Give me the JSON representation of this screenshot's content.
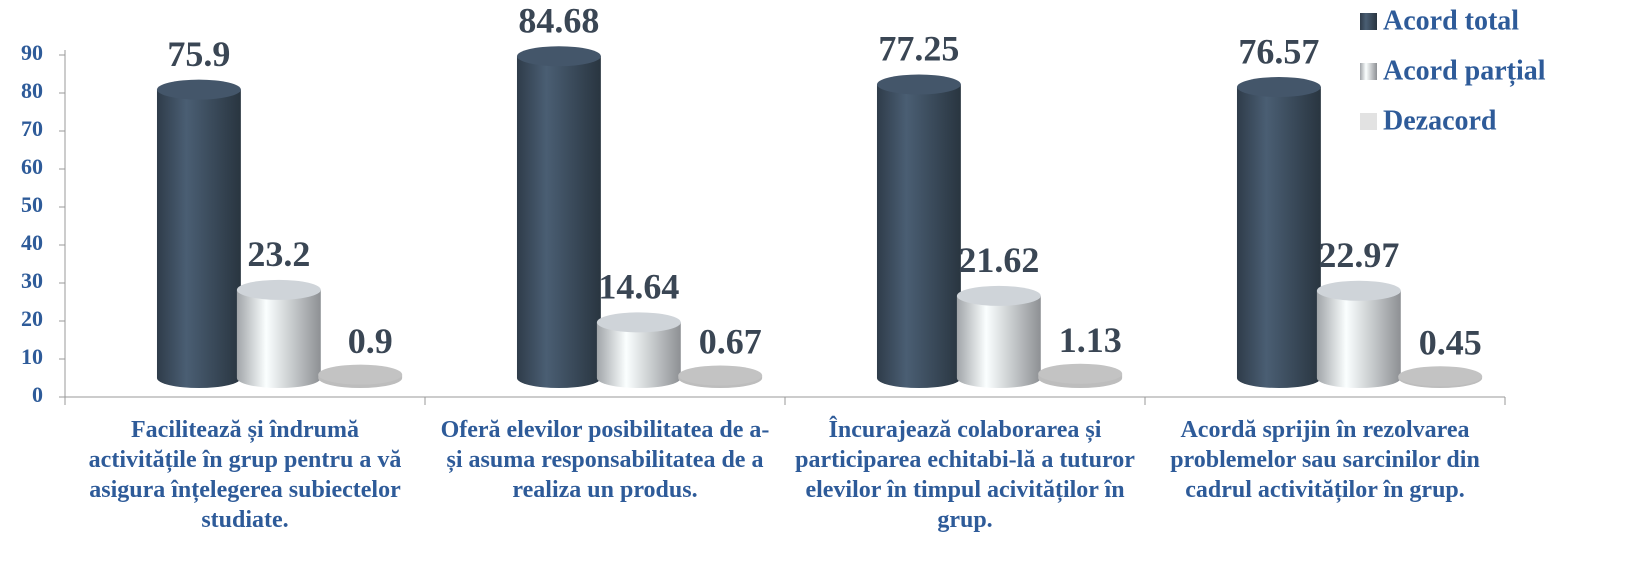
{
  "chart_data": {
    "type": "bar3d",
    "categories": [
      "Facilitează și îndrumă activitățile în grup pentru a vă asigura înțelegerea subiectelor studiate.",
      "Oferă elevilor posibilitatea de a-și asuma responsabilitatea de a realiza un produs.",
      "Încurajează colaborarea și participarea echitabi-lă a tuturor elevilor în timpul acivităților în grup.",
      "Acordă sprijin în rezolvarea problemelor sau sarcinilor din cadrul activităților în grup."
    ],
    "series": [
      {
        "name": "Acord total",
        "color": "#3b4b5c",
        "values": [
          75.9,
          84.68,
          77.25,
          76.57
        ]
      },
      {
        "name": "Acord parțial",
        "color": "#c9ced3",
        "values": [
          23.2,
          14.64,
          21.62,
          22.97
        ]
      },
      {
        "name": "Dezacord",
        "color": "#e2e2e2",
        "values": [
          0.9,
          0.67,
          1.13,
          0.45
        ]
      }
    ],
    "ylim": [
      0,
      90
    ],
    "yticks": [
      0,
      10,
      20,
      30,
      40,
      50,
      60,
      70,
      80,
      90
    ],
    "legend": "top-right"
  }
}
